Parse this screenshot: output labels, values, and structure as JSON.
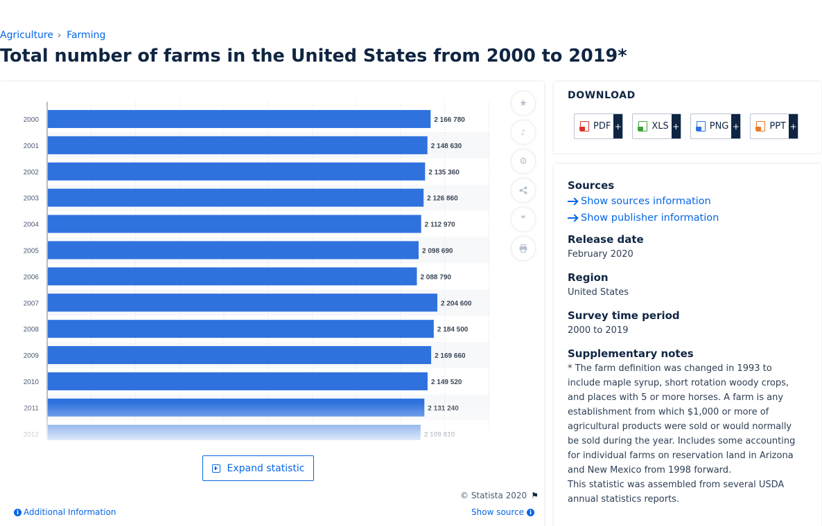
{
  "breadcrumb": {
    "items": [
      "Agriculture",
      "Farming"
    ],
    "separator": "›"
  },
  "title": "Total number of farms in the United States from 2000 to 2019*",
  "chart_data": {
    "type": "bar",
    "orientation": "horizontal",
    "categories": [
      "2000",
      "2001",
      "2002",
      "2003",
      "2004",
      "2005",
      "2006",
      "2007",
      "2008",
      "2009",
      "2010",
      "2011",
      "2012"
    ],
    "values": [
      2166780,
      2148630,
      2135360,
      2126860,
      2112970,
      2098690,
      2088790,
      2204600,
      2184500,
      2169660,
      2149520,
      2131240,
      2109810
    ],
    "labels": [
      "2 166 780",
      "2 148 630",
      "2 135 360",
      "2 126 860",
      "2 112 970",
      "2 098 690",
      "2 088 790",
      "2 204 600",
      "2 184 500",
      "2 169 660",
      "2 149 520",
      "2 131 240",
      "2 109 810"
    ],
    "xlim": [
      0,
      2500000
    ],
    "bar_color": "#2f72de",
    "grid": true,
    "legend": "none"
  },
  "tools": {
    "icons": [
      "star-icon",
      "bell-icon",
      "gear-icon",
      "share-icon",
      "quote-icon",
      "print-icon"
    ],
    "glyphs": [
      "★",
      "🔔",
      "⚙",
      "⋖",
      "❞",
      "⎙"
    ]
  },
  "expand_label": "Expand statistic",
  "copyright": "© Statista 2020",
  "additional_info": "Additional Information",
  "show_source": "Show source",
  "download": {
    "title": "DOWNLOAD",
    "buttons": [
      {
        "label": "PDF",
        "icon": "pdf-file-icon",
        "color": "#d9342b"
      },
      {
        "label": "XLS",
        "icon": "xls-file-icon",
        "color": "#3ea33b"
      },
      {
        "label": "PNG",
        "icon": "png-file-icon",
        "color": "#2f72de"
      },
      {
        "label": "PPT",
        "icon": "ppt-file-icon",
        "color": "#e8782a"
      }
    ],
    "plus": "+"
  },
  "details": {
    "sources_label": "Sources",
    "show_sources": "Show sources information",
    "show_publisher": "Show publisher information",
    "release_label": "Release date",
    "release_value": "February 2020",
    "region_label": "Region",
    "region_value": "United States",
    "survey_label": "Survey time period",
    "survey_value": "2000 to 2019",
    "notes_label": "Supplementary notes",
    "notes_p1": "* The farm definition was changed in 1993 to include maple syrup, short rotation woody crops, and places with 5 or more horses. A farm is any establishment from which $1,000 or more of agricultural products were sold or would normally be sold during the year. Includes some accounting for individual farms on reservation land in Arizona and New Mexico from 1998 forward.",
    "notes_p2": "This statistic was assembled from several USDA annual statistics reports."
  }
}
